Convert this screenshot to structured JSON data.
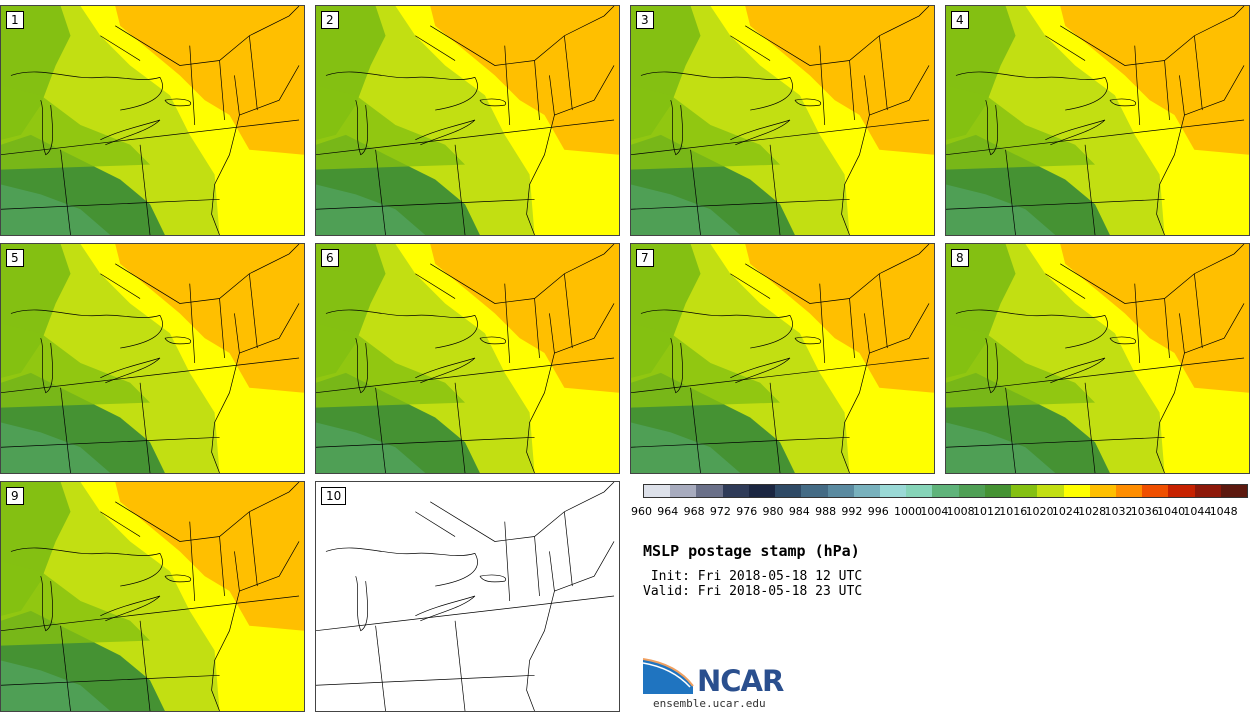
{
  "panels": [
    {
      "label": "1",
      "filled": true
    },
    {
      "label": "2",
      "filled": true
    },
    {
      "label": "3",
      "filled": true
    },
    {
      "label": "4",
      "filled": true
    },
    {
      "label": "5",
      "filled": true
    },
    {
      "label": "6",
      "filled": true
    },
    {
      "label": "7",
      "filled": true
    },
    {
      "label": "8",
      "filled": true
    },
    {
      "label": "9",
      "filled": true
    },
    {
      "label": "10",
      "filled": false
    }
  ],
  "colorbar": {
    "colors": [
      "#dde1ea",
      "#a7abbe",
      "#6a7089",
      "#2f3b58",
      "#1b2641",
      "#2f4a66",
      "#446b85",
      "#5a8aa0",
      "#78b1bd",
      "#9ad9d6",
      "#86d4b8",
      "#5fb37a",
      "#4f9f55",
      "#459233",
      "#84c012",
      "#c2df12",
      "#ffff00",
      "#ffbf00",
      "#ff8d00",
      "#ef4f00",
      "#c62100",
      "#8d1809",
      "#5c180e"
    ],
    "ticks": [
      "960",
      "964",
      "968",
      "972",
      "976",
      "980",
      "984",
      "988",
      "992",
      "996",
      "1000",
      "1004",
      "1008",
      "1012",
      "1016",
      "1020",
      "1024",
      "1028",
      "1032",
      "1036",
      "1040",
      "1044",
      "1048"
    ]
  },
  "title": "MSLP postage stamp (hPa)",
  "init": " Init: Fri 2018-05-18 12 UTC",
  "valid": "Valid: Fri 2018-05-18 23 UTC",
  "logo_text": "NCAR",
  "url": "ensemble.ucar.edu"
}
